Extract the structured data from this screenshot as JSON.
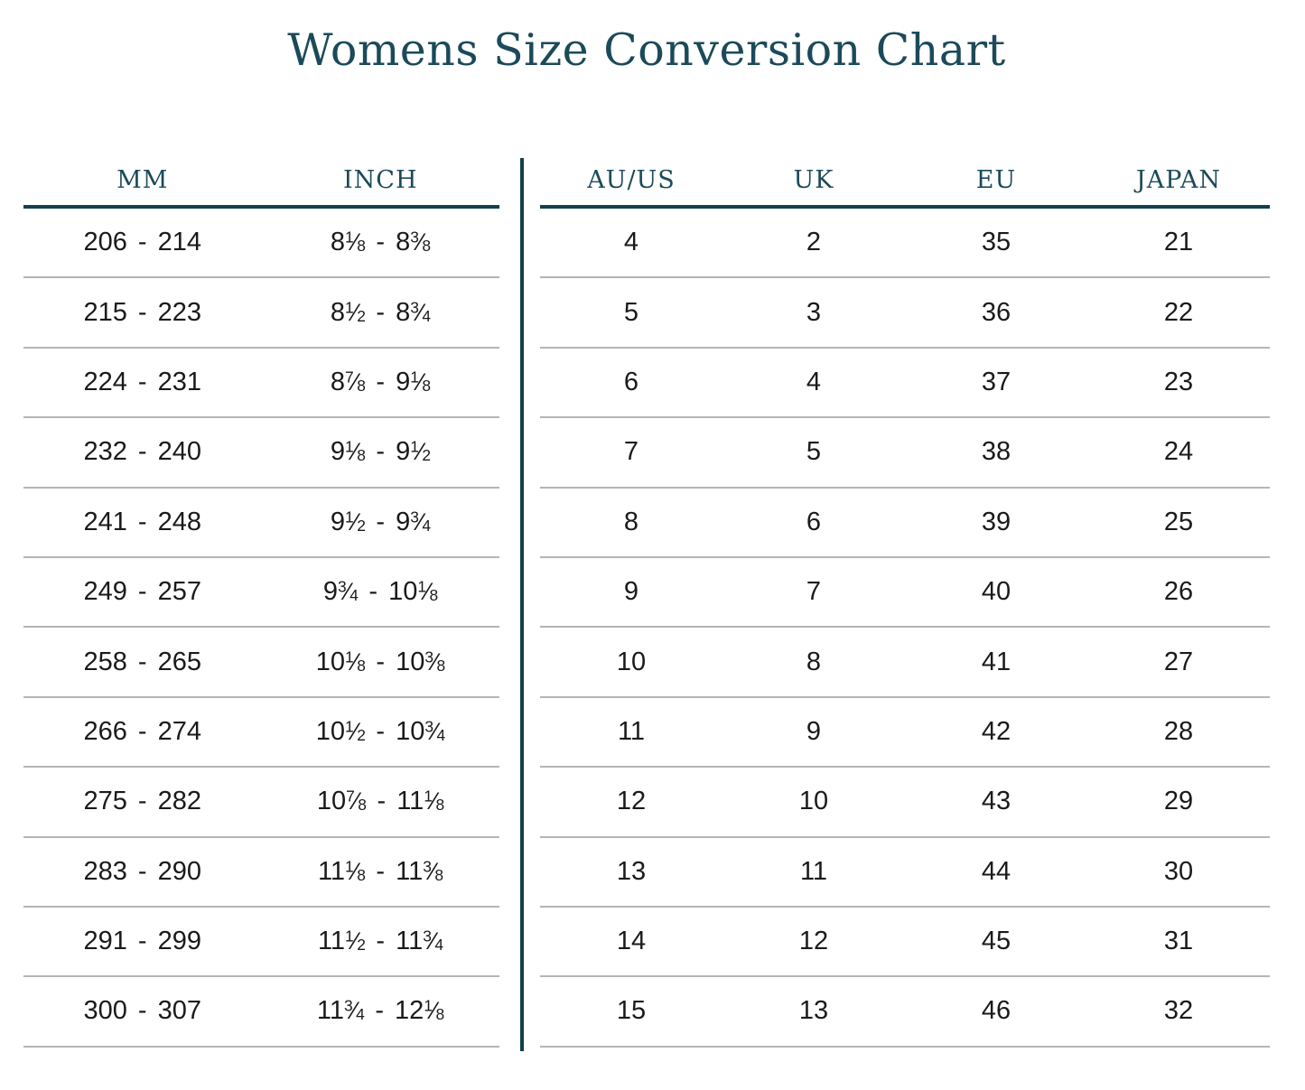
{
  "title": "Womens Size Conversion Chart",
  "colors": {
    "accent_text": "#1b4a5a",
    "accent_line": "#12404f",
    "row_separator": "#b5b5b5",
    "body_text": "#1a1a1a",
    "background": "#ffffff"
  },
  "left_table": {
    "headers": [
      "MM",
      "INCH"
    ],
    "rows": [
      [
        "206 - 214",
        "8⅛ - 8⅜"
      ],
      [
        "215 - 223",
        "8½ - 8¾"
      ],
      [
        "224 - 231",
        "8⅞ - 9⅛"
      ],
      [
        "232 - 240",
        "9⅛ - 9½"
      ],
      [
        "241 - 248",
        "9½ - 9¾"
      ],
      [
        "249 - 257",
        "9¾ - 10⅛"
      ],
      [
        "258 - 265",
        "10⅛ - 10⅜"
      ],
      [
        "266 - 274",
        "10½ - 10¾"
      ],
      [
        "275 - 282",
        "10⅞ - 11⅛"
      ],
      [
        "283 - 290",
        "11⅛ - 11⅜"
      ],
      [
        "291 - 299",
        "11½ - 11¾"
      ],
      [
        "300 - 307",
        "11¾ - 12⅛"
      ]
    ]
  },
  "right_table": {
    "headers": [
      "AU/US",
      "UK",
      "EU",
      "JAPAN"
    ],
    "rows": [
      [
        "4",
        "2",
        "35",
        "21"
      ],
      [
        "5",
        "3",
        "36",
        "22"
      ],
      [
        "6",
        "4",
        "37",
        "23"
      ],
      [
        "7",
        "5",
        "38",
        "24"
      ],
      [
        "8",
        "6",
        "39",
        "25"
      ],
      [
        "9",
        "7",
        "40",
        "26"
      ],
      [
        "10",
        "8",
        "41",
        "27"
      ],
      [
        "11",
        "9",
        "42",
        "28"
      ],
      [
        "12",
        "10",
        "43",
        "29"
      ],
      [
        "13",
        "11",
        "44",
        "30"
      ],
      [
        "14",
        "12",
        "45",
        "31"
      ],
      [
        "15",
        "13",
        "46",
        "32"
      ]
    ]
  },
  "chart_data": {
    "type": "table",
    "title": "Womens Size Conversion Chart",
    "columns": [
      "MM",
      "INCH",
      "AU/US",
      "UK",
      "EU",
      "JAPAN"
    ],
    "rows": [
      [
        "206 - 214",
        "8⅛ - 8⅜",
        4,
        2,
        35,
        21
      ],
      [
        "215 - 223",
        "8½ - 8¾",
        5,
        3,
        36,
        22
      ],
      [
        "224 - 231",
        "8⅞ - 9⅛",
        6,
        4,
        37,
        23
      ],
      [
        "232 - 240",
        "9⅛ - 9½",
        7,
        5,
        38,
        24
      ],
      [
        "241 - 248",
        "9½ - 9¾",
        8,
        6,
        39,
        25
      ],
      [
        "249 - 257",
        "9¾ - 10⅛",
        9,
        7,
        40,
        26
      ],
      [
        "258 - 265",
        "10⅛ - 10⅜",
        10,
        8,
        41,
        27
      ],
      [
        "266 - 274",
        "10½ - 10¾",
        11,
        9,
        42,
        28
      ],
      [
        "275 - 282",
        "10⅞ - 11⅛",
        12,
        10,
        43,
        29
      ],
      [
        "283 - 290",
        "11⅛ - 11⅜",
        13,
        11,
        44,
        30
      ],
      [
        "291 - 299",
        "11½ - 11¾",
        14,
        12,
        45,
        31
      ],
      [
        "300 - 307",
        "11¾ - 12⅛",
        15,
        13,
        46,
        32
      ]
    ],
    "layout": "two column groups split by a vertical divider: [MM, INCH] on the left, [AU/US, UK, EU, JAPAN] on the right; thick teal rule under headers; thin gray rules between rows"
  }
}
